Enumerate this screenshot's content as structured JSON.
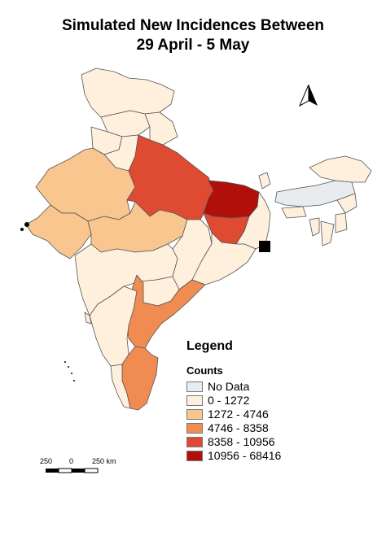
{
  "title": {
    "line1": "Simulated New Incidences Between",
    "line2": "29 April - 5 May"
  },
  "north_arrow": {
    "icon": "north-arrow-icon"
  },
  "legend": {
    "title": "Legend",
    "subtitle": "Counts",
    "items": [
      {
        "label": "No Data",
        "color": "#e8ecef"
      },
      {
        "label": "0 - 1272",
        "color": "#fef0dd"
      },
      {
        "label": "1272 - 4746",
        "color": "#f9c68f"
      },
      {
        "label": "4746 - 8358",
        "color": "#f08c52"
      },
      {
        "label": "8358 - 10956",
        "color": "#de4a32"
      },
      {
        "label": "10956 - 68416",
        "color": "#b00f0a"
      }
    ]
  },
  "scale_bar": {
    "left_label": "250",
    "mid_label": "0",
    "right_label": "250 km"
  },
  "colors": {
    "no_data": "#e8ecef",
    "class1": "#fef0dd",
    "class2": "#f9c68f",
    "class3": "#f08c52",
    "class4": "#de4a32",
    "class5": "#b00f0a",
    "border": "#555555"
  }
}
